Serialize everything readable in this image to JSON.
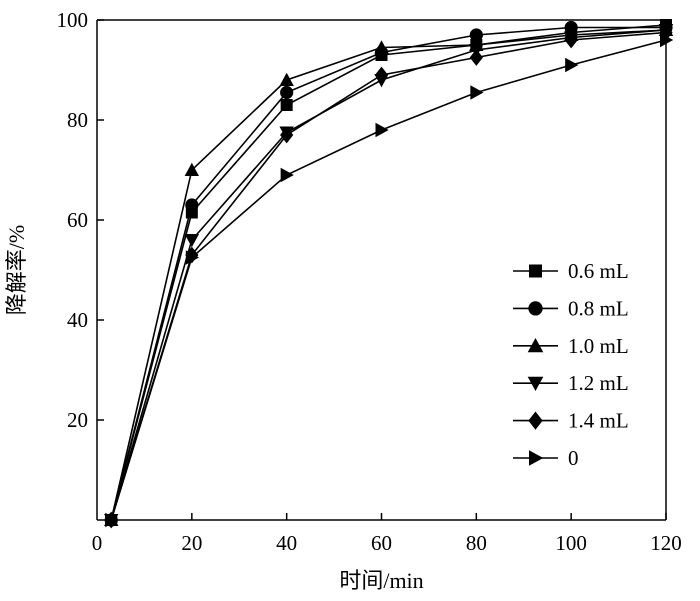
{
  "chart_data": {
    "type": "line",
    "xlabel": "时间/min",
    "ylabel": "降解率/%",
    "xlim": [
      0,
      120
    ],
    "ylim": [
      0,
      100
    ],
    "x_ticks": [
      "0",
      "20",
      "40",
      "60",
      "80",
      "100",
      "120"
    ],
    "y_ticks": [
      "20",
      "40",
      "60",
      "80",
      "100"
    ],
    "grid": false,
    "legend_position": "lower-right",
    "series": [
      {
        "name": "0.6 mL",
        "marker": "square",
        "x": [
          3,
          20,
          40,
          60,
          80,
          100,
          120
        ],
        "y": [
          0,
          61.5,
          83,
          93,
          95,
          97.5,
          99
        ]
      },
      {
        "name": "0.8 mL",
        "marker": "circle",
        "x": [
          3,
          20,
          40,
          60,
          80,
          100,
          120
        ],
        "y": [
          0,
          63,
          85.5,
          93.5,
          97,
          98.5,
          98.5
        ]
      },
      {
        "name": "1.0 mL",
        "marker": "triangle-up",
        "x": [
          3,
          20,
          40,
          60,
          80,
          100,
          120
        ],
        "y": [
          0,
          70,
          88,
          94.5,
          95,
          97,
          98
        ]
      },
      {
        "name": "1.2 mL",
        "marker": "triangle-down",
        "x": [
          3,
          20,
          40,
          60,
          80,
          100,
          120
        ],
        "y": [
          0,
          56,
          77.5,
          88,
          94,
          96.5,
          98
        ]
      },
      {
        "name": "1.4 mL",
        "marker": "diamond",
        "x": [
          3,
          20,
          40,
          60,
          80,
          100,
          120
        ],
        "y": [
          0,
          53,
          77,
          89,
          92.5,
          96,
          97.5
        ]
      },
      {
        "name": "0",
        "marker": "triangle-right",
        "x": [
          3,
          20,
          40,
          60,
          80,
          100,
          120
        ],
        "y": [
          0,
          52.5,
          69,
          78,
          85.5,
          91,
          96
        ]
      }
    ]
  }
}
